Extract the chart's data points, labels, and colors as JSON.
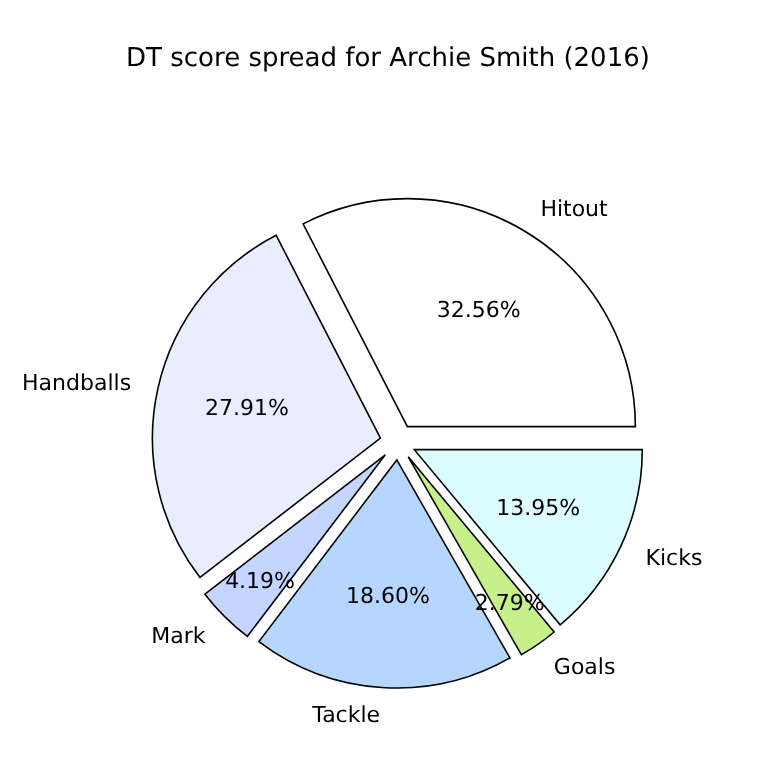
{
  "chart_data": {
    "type": "pie",
    "title": "DT score spread for Archie Smith (2016)",
    "categories": [
      "Hitout",
      "Handballs",
      "Mark",
      "Tackle",
      "Goals",
      "Kicks"
    ],
    "values": [
      32.56,
      27.91,
      4.19,
      18.6,
      2.79,
      13.95
    ],
    "value_labels": [
      "32.56%",
      "27.91%",
      "4.19%",
      "18.60%",
      "2.79%",
      "13.95%"
    ],
    "colors": [
      "#ffffff",
      "#e8eeff",
      "#c4d5ff",
      "#b5d6ff",
      "#c8f08a",
      "#dcfdff"
    ],
    "legend": false
  }
}
